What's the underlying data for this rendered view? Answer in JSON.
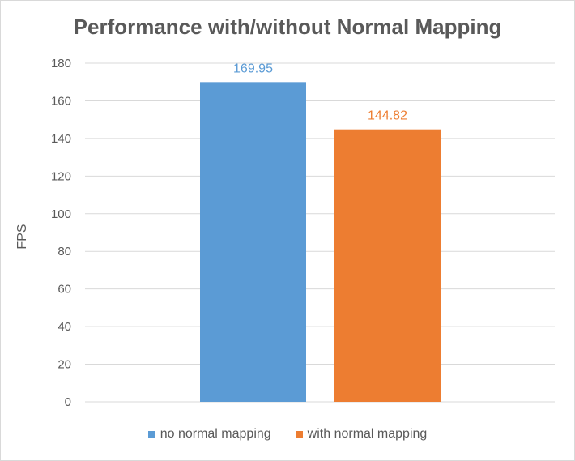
{
  "chart_data": {
    "type": "bar",
    "title": "Performance with/without Normal Mapping",
    "xlabel": "",
    "ylabel": "FPS",
    "ylim": [
      0,
      180
    ],
    "yticks": [
      0,
      20,
      40,
      60,
      80,
      100,
      120,
      140,
      160,
      180
    ],
    "grid": true,
    "legend_position": "bottom",
    "series": [
      {
        "name": "no normal mapping",
        "value": 169.95,
        "label": "169.95",
        "color": "#5b9bd5"
      },
      {
        "name": "with normal mapping",
        "value": 144.82,
        "label": "144.82",
        "color": "#ed7d31"
      }
    ]
  }
}
